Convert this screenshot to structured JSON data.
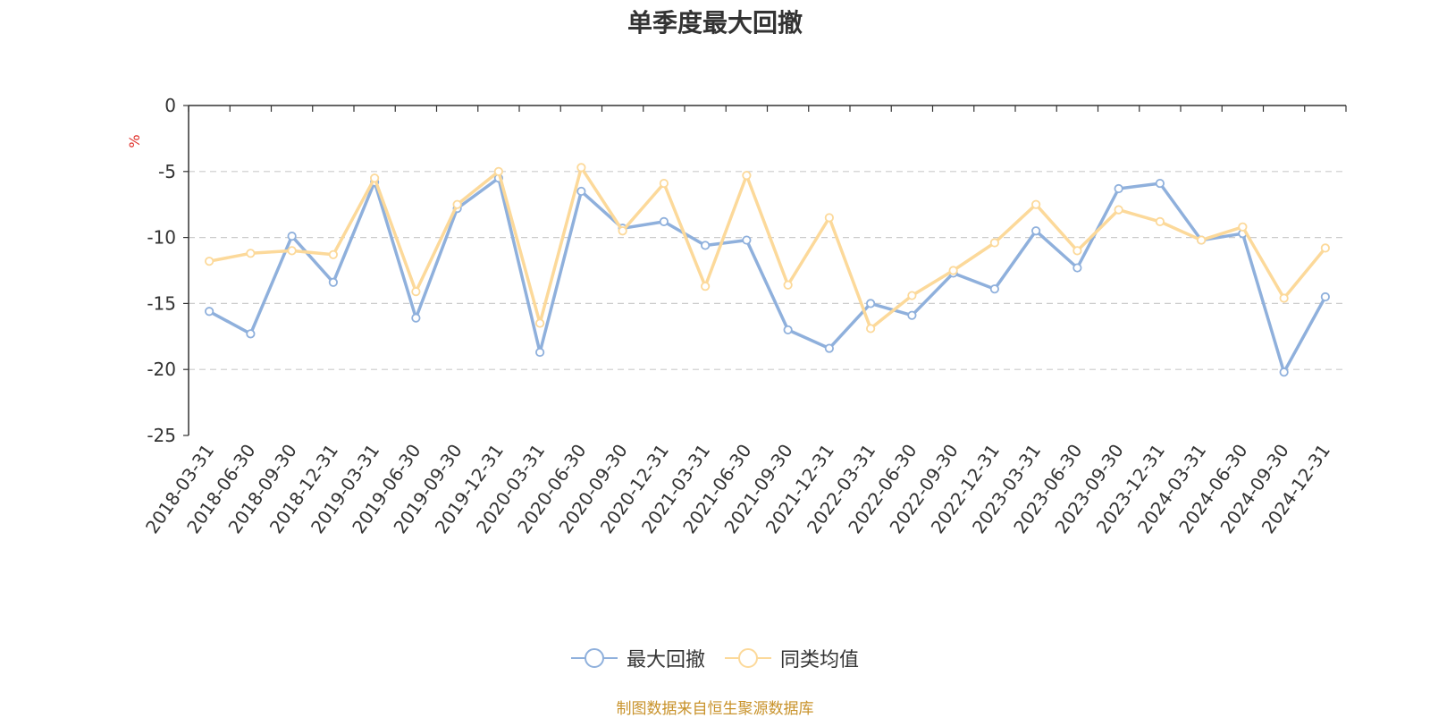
{
  "chart_data": {
    "type": "line",
    "title": "单季度最大回撤",
    "ylabel": "%",
    "xlabel": "",
    "ylim": [
      -25,
      0
    ],
    "yticks": [
      0,
      -5,
      -10,
      -15,
      -20,
      -25
    ],
    "grid": true,
    "legend_position": "bottom-center",
    "categories": [
      "2018-03-31",
      "2018-06-30",
      "2018-09-30",
      "2018-12-31",
      "2019-03-31",
      "2019-06-30",
      "2019-09-30",
      "2019-12-31",
      "2020-03-31",
      "2020-06-30",
      "2020-09-30",
      "2020-12-31",
      "2021-03-31",
      "2021-06-30",
      "2021-09-30",
      "2021-12-31",
      "2022-03-31",
      "2022-06-30",
      "2022-09-30",
      "2022-12-31",
      "2023-03-31",
      "2023-06-30",
      "2023-09-30",
      "2023-12-31",
      "2024-03-31",
      "2024-06-30",
      "2024-09-30",
      "2024-12-31"
    ],
    "series": [
      {
        "name": "最大回撤",
        "color": "#8fb0dc",
        "values": [
          -15.6,
          -17.3,
          -9.9,
          -13.4,
          -5.8,
          -16.1,
          -7.8,
          -5.5,
          -18.7,
          -6.5,
          -9.3,
          -8.8,
          -10.6,
          -10.2,
          -17.0,
          -18.4,
          -15.0,
          -15.9,
          -12.7,
          -13.9,
          -9.5,
          -12.3,
          -6.3,
          -5.9,
          -10.2,
          -9.7,
          -20.2,
          -14.5
        ]
      },
      {
        "name": "同类均值",
        "color": "#fcd99a",
        "values": [
          -11.8,
          -11.2,
          -11.0,
          -11.3,
          -5.5,
          -14.1,
          -7.5,
          -5.0,
          -16.5,
          -4.7,
          -9.5,
          -5.9,
          -13.7,
          -5.3,
          -13.6,
          -8.5,
          -16.9,
          -14.4,
          -12.5,
          -10.4,
          -7.5,
          -11.0,
          -7.9,
          -8.8,
          -10.2,
          -9.2,
          -14.6,
          -10.8
        ]
      }
    ],
    "source_note": "制图数据来自恒生聚源数据库",
    "source_note_color": "#c8922a",
    "ylabel_color": "#e0302a"
  }
}
